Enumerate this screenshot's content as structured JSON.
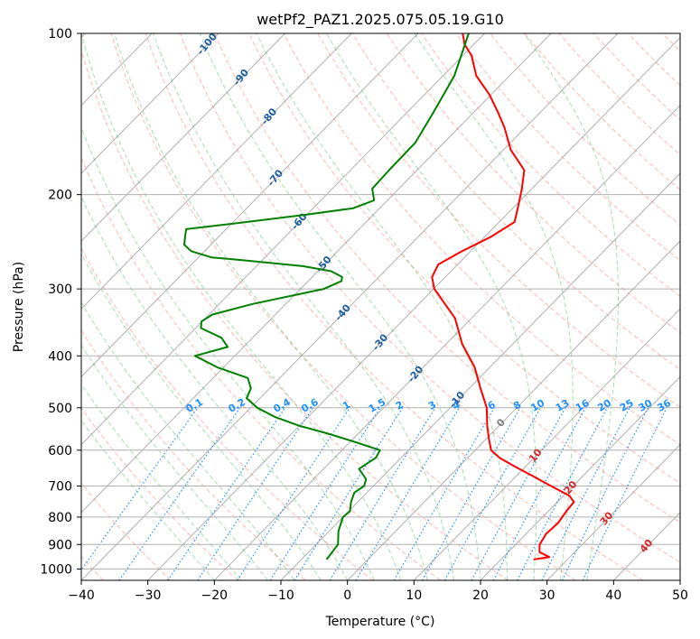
{
  "chart_data": {
    "type": "line",
    "title": "wetPf2_PAZ1.2025.075.05.19.G10",
    "xlabel": "Temperature (°C)",
    "ylabel": "Pressure (hPa)",
    "xlim": [
      -40,
      50
    ],
    "ylim": [
      1050,
      100
    ],
    "y_scale": "log",
    "x_ticks": [
      "-40",
      "-30",
      "-20",
      "-10",
      "0",
      "10",
      "20",
      "30",
      "40",
      "50"
    ],
    "y_ticks": [
      "100",
      "200",
      "300",
      "400",
      "500",
      "600",
      "700",
      "800",
      "900",
      "1000"
    ],
    "grid": true,
    "series": [
      {
        "color": "#ff0000",
        "pressure": [
          960,
          950,
          930,
          900,
          860,
          820,
          780,
          750,
          730,
          700,
          670,
          640,
          620,
          600,
          570,
          540,
          500,
          460,
          420,
          380,
          340,
          300,
          285,
          270,
          255,
          240,
          225,
          210,
          195,
          180,
          165,
          150,
          140,
          130,
          120,
          110,
          105,
          100
        ],
        "temperature": [
          24.9,
          26.9,
          24.7,
          23.6,
          23.0,
          23.2,
          22.7,
          22.5,
          20.9,
          16.7,
          12.4,
          7.8,
          4.8,
          2.4,
          0.3,
          -1.8,
          -4.5,
          -8.3,
          -12.3,
          -17.6,
          -22.5,
          -29.9,
          -32.0,
          -32.9,
          -31.3,
          -29.1,
          -27.7,
          -29.5,
          -31.5,
          -33.9,
          -38.9,
          -43.1,
          -46.5,
          -50.3,
          -55.0,
          -58.7,
          -61.3,
          -63.3
        ]
      },
      {
        "color": "#008000",
        "pressure": [
          960,
          900,
          850,
          800,
          780,
          750,
          720,
          700,
          680,
          650,
          620,
          600,
          580,
          560,
          540,
          520,
          500,
          480,
          460,
          440,
          420,
          400,
          385,
          370,
          355,
          345,
          335,
          320,
          300,
          290,
          285,
          278,
          272,
          265,
          262,
          255,
          248,
          240,
          232,
          225,
          218,
          212,
          205,
          195,
          180,
          160,
          140,
          120,
          100
        ],
        "temperature": [
          -6.2,
          -6.7,
          -8.6,
          -10.0,
          -9.8,
          -11.0,
          -11.9,
          -11.4,
          -12.1,
          -14.7,
          -13.8,
          -14.3,
          -19.1,
          -24.2,
          -30.1,
          -35.0,
          -39.0,
          -42.0,
          -42.8,
          -44.8,
          -51.0,
          -56.0,
          -52.4,
          -54.7,
          -59.2,
          -60.1,
          -59.5,
          -55.0,
          -46.5,
          -45.0,
          -45.5,
          -48.0,
          -53.0,
          -63.0,
          -68.0,
          -72.0,
          -74.0,
          -75.0,
          -76.0,
          -68.0,
          -60.0,
          -54.0,
          -52.0,
          -54.0,
          -54.2,
          -54.3,
          -56.1,
          -58.3,
          -62.4
        ]
      }
    ],
    "isopleths": {
      "isotherms": [
        -100,
        -90,
        -80,
        -70,
        -60,
        -50,
        -40,
        -30,
        -20,
        -10,
        0,
        10,
        20,
        30,
        40
      ],
      "mixing_ratios_g_per_kg": [
        "0.1",
        "0.2",
        "0.4",
        "0.6",
        "1",
        "1.5",
        "2",
        "3",
        "4",
        "6",
        "8",
        "10",
        "13",
        "16",
        "20",
        "25",
        "30",
        "36"
      ],
      "dry_adiabats": true,
      "moist_adiabats": true
    },
    "colors": {
      "isotherm_label": "#1f5fa0",
      "isotherm_warm_label": "#d62728",
      "isotherm_zero_label": "#808080",
      "mixing_ratio": "#1e90ff",
      "dry_adiabat": "#fa8072",
      "moist_adiabat": "#3cb44b",
      "grid": "#b0b0b0"
    }
  }
}
